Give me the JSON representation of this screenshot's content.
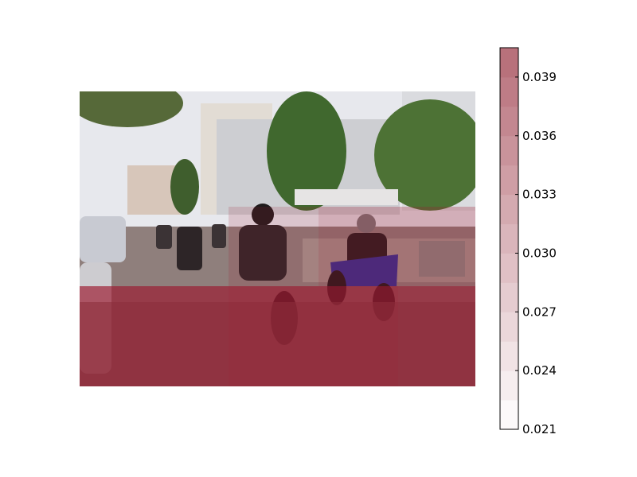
{
  "chart_data": {
    "type": "heatmap",
    "title": "",
    "xlabel": "",
    "ylabel": "",
    "description_free": true,
    "grid": {
      "rows": 3,
      "cols": 5,
      "values": [
        [
          0.0215,
          0.0215,
          0.0215,
          0.0215,
          0.0215
        ],
        [
          0.0215,
          0.0215,
          0.026,
          0.029,
          0.029
        ],
        [
          0.0395,
          0.0395,
          0.0405,
          0.0405,
          0.0395
        ]
      ]
    },
    "colorbar": {
      "vmin": 0.021,
      "vmax": 0.0405,
      "levels": 13,
      "ticks": [
        0.021,
        0.024,
        0.027,
        0.03,
        0.033,
        0.036,
        0.039
      ],
      "tick_labels": [
        "0.021",
        "0.024",
        "0.027",
        "0.030",
        "0.033",
        "0.036",
        "0.039"
      ],
      "color_low": "#ffffff",
      "color_high": "#b56b76"
    },
    "overlay_color": "#9b1b30",
    "photo_colors": {
      "sky": "#e9ecf1",
      "building": "#d8d4cc",
      "tree": "#4d6b34",
      "road": "#8a7a78",
      "shadow": "#4a3e3c",
      "car": "#c9ced6",
      "bike_blue": "#2d2f9a",
      "rider": "#1e1a1c"
    }
  }
}
